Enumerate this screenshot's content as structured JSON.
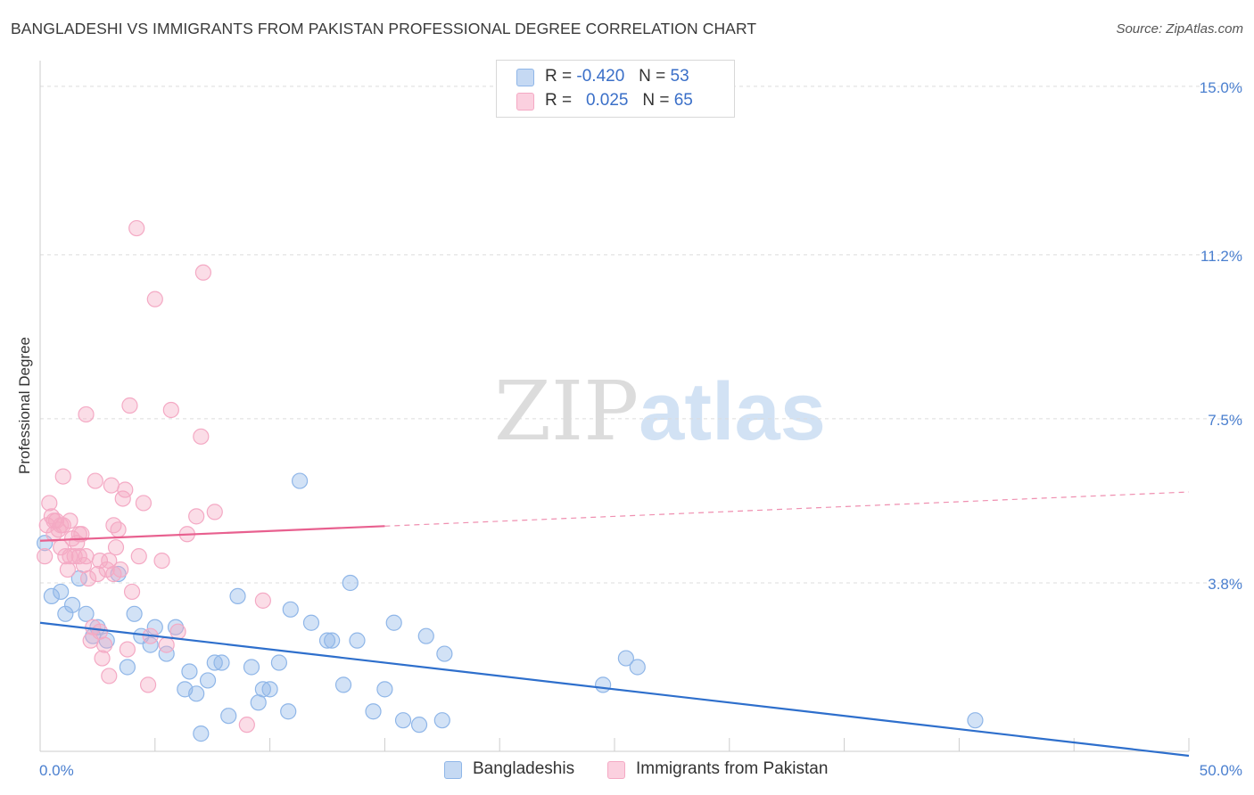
{
  "chart_data": {
    "type": "scatter",
    "title": "BANGLADESHI VS IMMIGRANTS FROM PAKISTAN PROFESSIONAL DEGREE CORRELATION CHART",
    "source": "Source: ZipAtlas.com",
    "ylabel": "Professional Degree",
    "xlabel": "",
    "xlim": [
      0,
      50
    ],
    "ylim": [
      0,
      15.5
    ],
    "y_ticks": [
      {
        "value": 3.8,
        "label": "3.8%"
      },
      {
        "value": 7.5,
        "label": "7.5%"
      },
      {
        "value": 11.2,
        "label": "11.2%"
      },
      {
        "value": 15.0,
        "label": "15.0%"
      }
    ],
    "x_tick_labels": {
      "min": "0.0%",
      "max": "50.0%"
    },
    "grid": true,
    "legend_placement": "top-center",
    "watermark": {
      "zip": "ZIP",
      "atlas": "atlas"
    },
    "series": [
      {
        "name": "Bangladeshis",
        "color": "#8fb6e8",
        "line_color": "#2e6fcc",
        "legend": {
          "r_label": "R =",
          "r": "-0.420",
          "n_label": "N =",
          "n": "53"
        },
        "trend": {
          "x0": 0,
          "y0": 2.9,
          "x1": 50,
          "y1": -0.1,
          "solid_until": 50
        },
        "points": [
          [
            0.5,
            3.5
          ],
          [
            0.9,
            3.6
          ],
          [
            1.1,
            3.1
          ],
          [
            1.4,
            3.3
          ],
          [
            1.7,
            3.9
          ],
          [
            2.0,
            3.1
          ],
          [
            2.3,
            2.6
          ],
          [
            2.5,
            2.8
          ],
          [
            2.9,
            2.5
          ],
          [
            3.4,
            4.0
          ],
          [
            3.8,
            1.9
          ],
          [
            4.1,
            3.1
          ],
          [
            4.4,
            2.6
          ],
          [
            4.8,
            2.4
          ],
          [
            5.0,
            2.8
          ],
          [
            5.5,
            2.2
          ],
          [
            5.9,
            2.8
          ],
          [
            6.3,
            1.4
          ],
          [
            6.5,
            1.8
          ],
          [
            6.8,
            1.3
          ],
          [
            7.0,
            0.4
          ],
          [
            7.3,
            1.6
          ],
          [
            7.6,
            2.0
          ],
          [
            7.9,
            2.0
          ],
          [
            8.2,
            0.8
          ],
          [
            8.6,
            3.5
          ],
          [
            9.2,
            1.9
          ],
          [
            9.5,
            1.1
          ],
          [
            9.7,
            1.4
          ],
          [
            10.0,
            1.4
          ],
          [
            10.4,
            2.0
          ],
          [
            10.8,
            0.9
          ],
          [
            10.9,
            3.2
          ],
          [
            11.3,
            6.1
          ],
          [
            11.8,
            2.9
          ],
          [
            12.5,
            2.5
          ],
          [
            12.7,
            2.5
          ],
          [
            13.2,
            1.5
          ],
          [
            13.5,
            3.8
          ],
          [
            13.8,
            2.5
          ],
          [
            14.5,
            0.9
          ],
          [
            15.0,
            1.4
          ],
          [
            15.4,
            2.9
          ],
          [
            15.8,
            0.7
          ],
          [
            16.5,
            0.6
          ],
          [
            16.8,
            2.6
          ],
          [
            17.5,
            0.7
          ],
          [
            17.6,
            2.2
          ],
          [
            24.5,
            1.5
          ],
          [
            25.5,
            2.1
          ],
          [
            26.0,
            1.9
          ],
          [
            40.7,
            0.7
          ],
          [
            0.2,
            4.7
          ]
        ]
      },
      {
        "name": "Immigrants from Pakistan",
        "color": "#f4a9c4",
        "line_color": "#e8608f",
        "legend": {
          "r_label": "R =",
          "r": "0.025",
          "n_label": "N =",
          "n": "65"
        },
        "trend": {
          "x0": 0,
          "y0": 4.75,
          "x1": 50,
          "y1": 5.85,
          "solid_until": 15
        },
        "points": [
          [
            0.3,
            5.1
          ],
          [
            0.4,
            5.6
          ],
          [
            0.5,
            5.3
          ],
          [
            0.6,
            4.9
          ],
          [
            0.7,
            5.2
          ],
          [
            0.8,
            5.0
          ],
          [
            0.9,
            4.6
          ],
          [
            1.0,
            5.1
          ],
          [
            1.1,
            4.4
          ],
          [
            1.2,
            4.1
          ],
          [
            1.3,
            5.2
          ],
          [
            1.4,
            4.8
          ],
          [
            1.5,
            4.4
          ],
          [
            1.6,
            4.7
          ],
          [
            1.7,
            4.4
          ],
          [
            1.8,
            4.9
          ],
          [
            1.9,
            4.2
          ],
          [
            2.0,
            7.6
          ],
          [
            2.1,
            3.9
          ],
          [
            2.2,
            2.5
          ],
          [
            2.3,
            2.8
          ],
          [
            2.4,
            6.1
          ],
          [
            2.5,
            4.0
          ],
          [
            2.6,
            4.3
          ],
          [
            2.7,
            2.1
          ],
          [
            2.8,
            2.4
          ],
          [
            2.9,
            4.1
          ],
          [
            3.0,
            1.7
          ],
          [
            3.1,
            6.0
          ],
          [
            3.2,
            5.1
          ],
          [
            3.3,
            4.6
          ],
          [
            3.4,
            5.0
          ],
          [
            3.5,
            4.1
          ],
          [
            3.6,
            5.7
          ],
          [
            3.7,
            5.9
          ],
          [
            3.8,
            2.3
          ],
          [
            3.9,
            7.8
          ],
          [
            4.0,
            3.6
          ],
          [
            4.2,
            11.8
          ],
          [
            4.5,
            5.6
          ],
          [
            4.7,
            1.5
          ],
          [
            4.8,
            2.6
          ],
          [
            5.0,
            10.2
          ],
          [
            5.3,
            4.3
          ],
          [
            5.5,
            2.4
          ],
          [
            5.7,
            7.7
          ],
          [
            6.0,
            2.7
          ],
          [
            6.4,
            4.9
          ],
          [
            6.8,
            5.3
          ],
          [
            7.0,
            7.1
          ],
          [
            7.1,
            10.8
          ],
          [
            7.6,
            5.4
          ],
          [
            9.0,
            0.6
          ],
          [
            9.7,
            3.4
          ],
          [
            1.0,
            6.2
          ],
          [
            0.2,
            4.4
          ],
          [
            1.3,
            4.4
          ],
          [
            2.0,
            4.4
          ],
          [
            3.0,
            4.3
          ],
          [
            3.2,
            4.0
          ],
          [
            0.6,
            5.2
          ],
          [
            0.9,
            5.1
          ],
          [
            1.7,
            4.9
          ],
          [
            2.6,
            2.7
          ],
          [
            4.3,
            4.4
          ]
        ]
      }
    ]
  }
}
